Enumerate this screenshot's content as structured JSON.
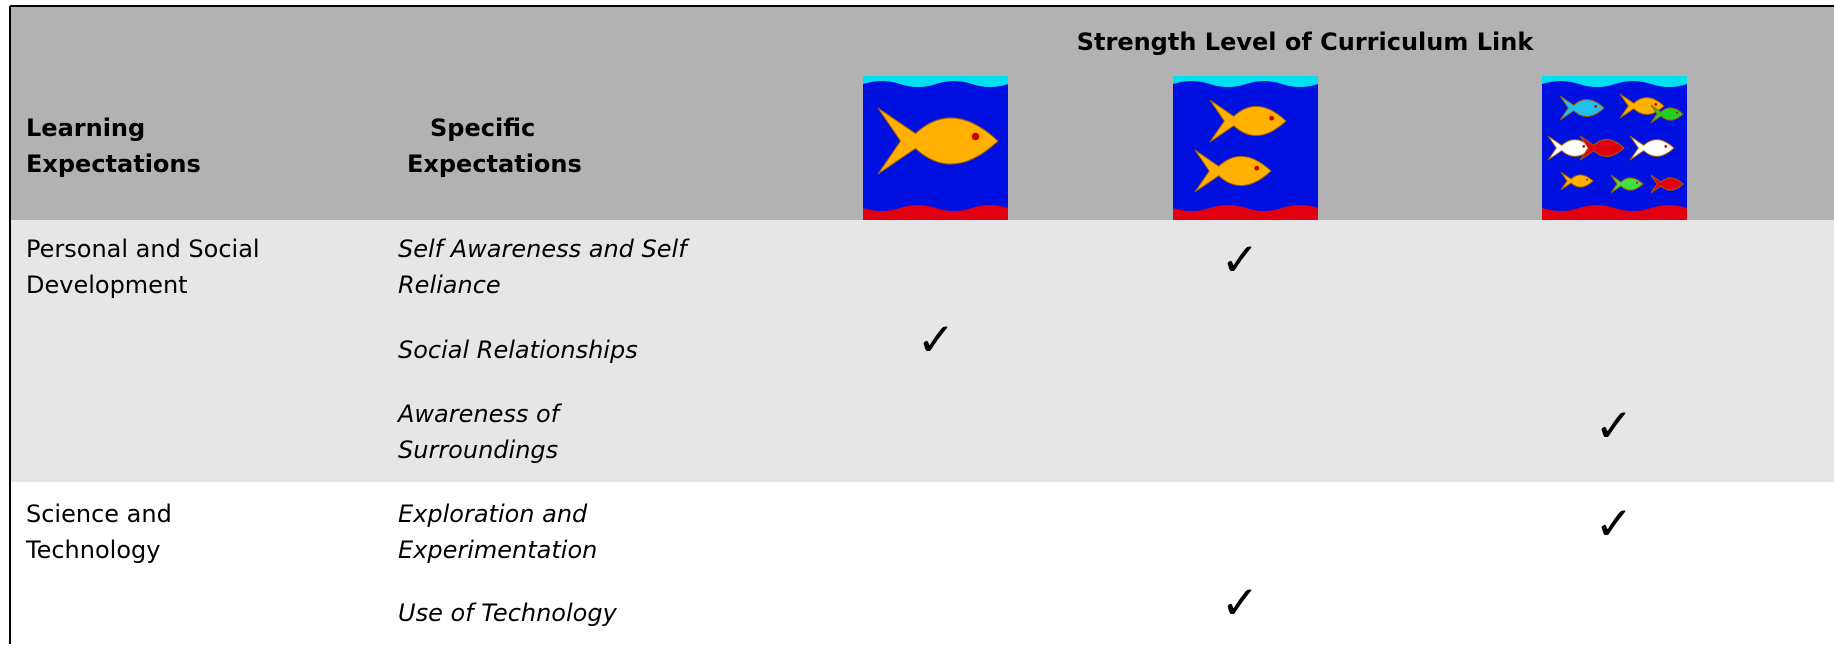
{
  "header": {
    "title": "Strength Level of Curriculum Link",
    "columns": [
      [
        "Learning",
        "Expectations"
      ],
      [
        "Specific",
        "Expectations"
      ]
    ]
  },
  "sections": [
    {
      "learning": [
        "Personal and Social",
        "Development"
      ],
      "items": [
        {
          "specific": [
            "Self Awareness and Self",
            "Reliance"
          ],
          "checks": [
            null,
            "✓",
            null
          ]
        },
        {
          "specific": [
            "Social Relationships"
          ],
          "checks": [
            "✓",
            null,
            null
          ]
        },
        {
          "specific": [
            "Awareness of",
            "Surroundings"
          ],
          "checks": [
            null,
            null,
            "✓"
          ]
        }
      ]
    },
    {
      "learning": [
        "Science and",
        "Technology"
      ],
      "items": [
        {
          "specific": [
            "Exploration and",
            "Experimentation"
          ],
          "checks": [
            null,
            null,
            "✓"
          ]
        },
        {
          "specific": [
            "Use of Technology"
          ],
          "checks": [
            null,
            "✓",
            null
          ]
        }
      ]
    }
  ]
}
